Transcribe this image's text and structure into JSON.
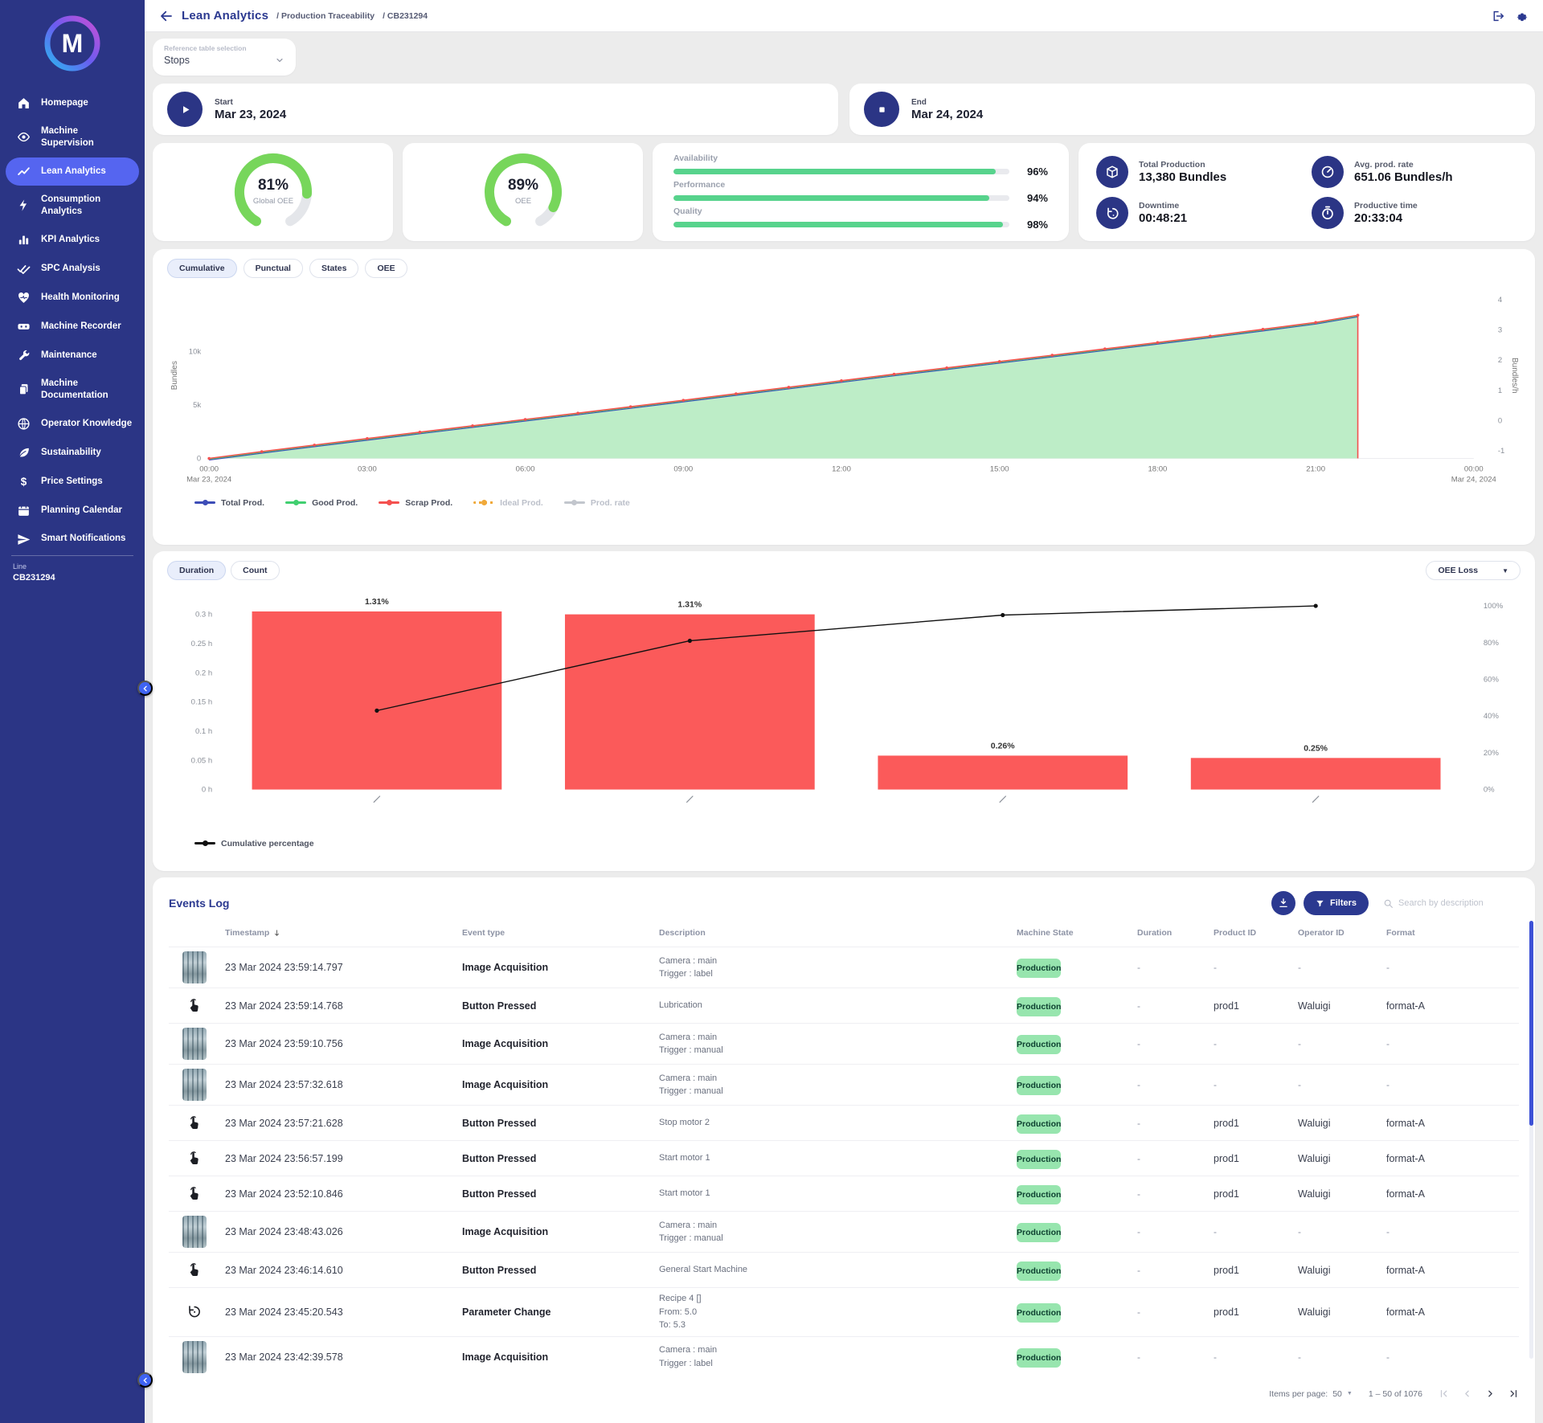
{
  "header": {
    "title": "Lean Analytics",
    "crumbs": [
      "/ Production Traceability",
      "/ CB231294"
    ]
  },
  "sidebar": {
    "logo_letter": "M",
    "items": [
      {
        "label": "Homepage",
        "icon": "home"
      },
      {
        "label": "Machine Supervision",
        "icon": "eye"
      },
      {
        "label": "Lean Analytics",
        "icon": "trend",
        "active": true
      },
      {
        "label": "Consumption Analytics",
        "icon": "bolt"
      },
      {
        "label": "KPI Analytics",
        "icon": "bars"
      },
      {
        "label": "SPC Analysis",
        "icon": "checks"
      },
      {
        "label": "Health Monitoring",
        "icon": "heart"
      },
      {
        "label": "Machine Recorder",
        "icon": "recorder"
      },
      {
        "label": "Maintenance",
        "icon": "wrench"
      },
      {
        "label": "Machine Documentation",
        "icon": "docs"
      },
      {
        "label": "Operator Knowledge",
        "icon": "knowledge"
      },
      {
        "label": "Sustainability",
        "icon": "leaf"
      },
      {
        "label": "Price Settings",
        "icon": "dollar"
      },
      {
        "label": "Planning Calendar",
        "icon": "calendar"
      },
      {
        "label": "Smart Notifications",
        "icon": "send",
        "clipped": true
      }
    ],
    "machine": {
      "label": "Line",
      "value": "CB231294"
    }
  },
  "reference": {
    "label": "Reference table selection",
    "value": "Stops"
  },
  "range": {
    "start": {
      "label": "Start",
      "date": "Mar 23, 2024",
      "icon": "play"
    },
    "end": {
      "label": "End",
      "date": "Mar 24, 2024",
      "icon": "stopsq"
    }
  },
  "kpis": {
    "donuts": [
      {
        "pct": 81,
        "display": "81%",
        "label": "Global OEE"
      },
      {
        "pct": 89,
        "display": "89%",
        "label": "OEE"
      }
    ],
    "bars": [
      {
        "label": "Availability",
        "pct": 96,
        "display": "96%"
      },
      {
        "label": "Performance",
        "pct": 94,
        "display": "94%"
      },
      {
        "label": "Quality",
        "pct": 98,
        "display": "98%"
      }
    ],
    "stats": [
      {
        "icon": "box",
        "label": "Total Production",
        "value": "13,380 Bundles"
      },
      {
        "icon": "gauge",
        "label": "Avg. prod. rate",
        "value": "651.06 Bundles/h"
      },
      {
        "icon": "history",
        "label": "Downtime",
        "value": "00:48:21"
      },
      {
        "icon": "stopwatch",
        "label": "Productive time",
        "value": "20:33:04"
      }
    ]
  },
  "production_chart": {
    "tabs": [
      "Cumulative",
      "Punctual",
      "States",
      "OEE"
    ],
    "active_tab": 0,
    "chart_data": {
      "type": "area",
      "x_hours": [
        0,
        1,
        2,
        3,
        4,
        5,
        6,
        7,
        8,
        9,
        10,
        11,
        12,
        13,
        14,
        15,
        16,
        17,
        18,
        19,
        20,
        21,
        21.8
      ],
      "values_bundles": [
        0,
        640,
        1250,
        1850,
        2450,
        3050,
        3640,
        4230,
        4830,
        5430,
        6040,
        6650,
        7260,
        7870,
        8460,
        9050,
        9640,
        10230,
        10830,
        11430,
        12060,
        12700,
        13380
      ],
      "y_left": {
        "label": "Bundles",
        "ticks": [
          {
            "v": 0,
            "t": "0"
          },
          {
            "v": 5000,
            "t": "5k"
          },
          {
            "v": 10000,
            "t": "10k"
          }
        ],
        "max": 15500
      },
      "y_right": {
        "label": "Bundles/h",
        "ticks": [
          "4",
          "3",
          "2",
          "1",
          "0",
          "-1"
        ]
      },
      "x_ticks": [
        {
          "h": 0,
          "t": "00:00",
          "sub": "Mar 23, 2024"
        },
        {
          "h": 3,
          "t": "03:00"
        },
        {
          "h": 6,
          "t": "06:00"
        },
        {
          "h": 9,
          "t": "09:00"
        },
        {
          "h": 12,
          "t": "12:00"
        },
        {
          "h": 15,
          "t": "15:00"
        },
        {
          "h": 18,
          "t": "18:00"
        },
        {
          "h": 21,
          "t": "21:00"
        },
        {
          "h": 24,
          "t": "00:00",
          "sub": "Mar 24, 2024"
        }
      ],
      "legend": [
        {
          "name": "Total Prod.",
          "color": "#3d4db7",
          "enabled": true,
          "style": "solid"
        },
        {
          "name": "Good Prod.",
          "color": "#41cf70",
          "enabled": true,
          "style": "solid"
        },
        {
          "name": "Scrap Prod.",
          "color": "#f4514f",
          "enabled": true,
          "style": "solid"
        },
        {
          "name": "Ideal Prod.",
          "color": "#f0a93a",
          "enabled": false,
          "style": "dotted"
        },
        {
          "name": "Prod. rate",
          "color": "#c2c6cd",
          "enabled": false,
          "style": "solid"
        }
      ],
      "colors": {
        "area_fill": "#b7ecc2",
        "top_line": "#f4514f"
      }
    }
  },
  "pareto_chart": {
    "toggles": [
      "Duration",
      "Count"
    ],
    "active_toggle": 0,
    "select_value": "OEE Loss",
    "chart_data": {
      "type": "pareto",
      "bar_color": "#fb5a5a",
      "durations_h": [
        0.305,
        0.3,
        0.058,
        0.054
      ],
      "percent_labels": [
        "1.31%",
        "1.31%",
        "0.26%",
        "0.25%"
      ],
      "cumulative_pct": [
        43,
        81,
        95,
        100
      ],
      "y_left_ticks": [
        {
          "v": 0,
          "t": "0 h"
        },
        {
          "v": 0.05,
          "t": "0.05 h"
        },
        {
          "v": 0.1,
          "t": "0.1 h"
        },
        {
          "v": 0.15,
          "t": "0.15 h"
        },
        {
          "v": 0.2,
          "t": "0.2 h"
        },
        {
          "v": 0.25,
          "t": "0.25 h"
        },
        {
          "v": 0.3,
          "t": "0.3 h"
        }
      ],
      "y_right_ticks": [
        {
          "v": 0,
          "t": "0%"
        },
        {
          "v": 20,
          "t": "20%"
        },
        {
          "v": 40,
          "t": "40%"
        },
        {
          "v": 60,
          "t": "60%"
        },
        {
          "v": 80,
          "t": "80%"
        },
        {
          "v": 100,
          "t": "100%"
        }
      ],
      "legend": "Cumulative percentage"
    }
  },
  "events": {
    "title": "Events Log",
    "filters_label": "Filters",
    "search_placeholder": "Search by description",
    "columns": [
      "Timestamp",
      "Event type",
      "Description",
      "Machine State",
      "Duration",
      "Product ID",
      "Operator ID",
      "Format"
    ],
    "state_badge_color": "#97e5ae",
    "rows": [
      {
        "icon": "image",
        "timestamp": "23 Mar 2024 23:59:14.797",
        "type": "Image Acquisition",
        "desc": [
          "Camera : main",
          "Trigger : label"
        ],
        "state": "Production",
        "duration": "-",
        "product": "-",
        "operator": "-",
        "format": "-"
      },
      {
        "icon": "press",
        "timestamp": "23 Mar 2024 23:59:14.768",
        "type": "Button Pressed",
        "desc": [
          "Lubrication"
        ],
        "state": "Production",
        "duration": "-",
        "product": "prod1",
        "operator": "Waluigi",
        "format": "format-A"
      },
      {
        "icon": "image",
        "timestamp": "23 Mar 2024 23:59:10.756",
        "type": "Image Acquisition",
        "desc": [
          "Camera : main",
          "Trigger : manual"
        ],
        "state": "Production",
        "duration": "-",
        "product": "-",
        "operator": "-",
        "format": "-"
      },
      {
        "icon": "image",
        "timestamp": "23 Mar 2024 23:57:32.618",
        "type": "Image Acquisition",
        "desc": [
          "Camera : main",
          "Trigger : manual"
        ],
        "state": "Production",
        "duration": "-",
        "product": "-",
        "operator": "-",
        "format": "-"
      },
      {
        "icon": "press",
        "timestamp": "23 Mar 2024 23:57:21.628",
        "type": "Button Pressed",
        "desc": [
          "Stop motor 2"
        ],
        "state": "Production",
        "duration": "-",
        "product": "prod1",
        "operator": "Waluigi",
        "format": "format-A"
      },
      {
        "icon": "press",
        "timestamp": "23 Mar 2024 23:56:57.199",
        "type": "Button Pressed",
        "desc": [
          "Start motor 1"
        ],
        "state": "Production",
        "duration": "-",
        "product": "prod1",
        "operator": "Waluigi",
        "format": "format-A"
      },
      {
        "icon": "press",
        "timestamp": "23 Mar 2024 23:52:10.846",
        "type": "Button Pressed",
        "desc": [
          "Start motor 1"
        ],
        "state": "Production",
        "duration": "-",
        "product": "prod1",
        "operator": "Waluigi",
        "format": "format-A"
      },
      {
        "icon": "image",
        "timestamp": "23 Mar 2024 23:48:43.026",
        "type": "Image Acquisition",
        "desc": [
          "Camera : main",
          "Trigger : manual"
        ],
        "state": "Production",
        "duration": "-",
        "product": "-",
        "operator": "-",
        "format": "-"
      },
      {
        "icon": "press",
        "timestamp": "23 Mar 2024 23:46:14.610",
        "type": "Button Pressed",
        "desc": [
          "General Start Machine"
        ],
        "state": "Production",
        "duration": "-",
        "product": "prod1",
        "operator": "Waluigi",
        "format": "format-A"
      },
      {
        "icon": "param",
        "timestamp": "23 Mar 2024 23:45:20.543",
        "type": "Parameter Change",
        "desc": [
          "Recipe 4 []",
          "From: 5.0",
          "To: 5.3"
        ],
        "state": "Production",
        "duration": "-",
        "product": "prod1",
        "operator": "Waluigi",
        "format": "format-A"
      },
      {
        "icon": "image",
        "timestamp": "23 Mar 2024 23:42:39.578",
        "type": "Image Acquisition",
        "desc": [
          "Camera : main",
          "Trigger : label"
        ],
        "state": "Production",
        "duration": "-",
        "product": "-",
        "operator": "-",
        "format": "-"
      }
    ],
    "pagination": {
      "items_label": "Items per page:",
      "per_page": "50",
      "range": "1 – 50 of 1076"
    }
  }
}
